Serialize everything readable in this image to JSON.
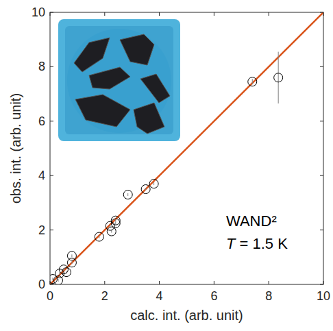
{
  "chart_data": {
    "type": "scatter",
    "xlabel": "calc. int. (arb. unit)",
    "ylabel": "obs. int. (arb. unit)",
    "annotations": [
      "WAND²",
      "T = 1.5 K"
    ],
    "xlim": [
      0,
      10
    ],
    "ylim": [
      0,
      10
    ],
    "xticks": [
      0,
      2,
      4,
      6,
      8,
      10
    ],
    "yticks": [
      0,
      2,
      4,
      6,
      8,
      10
    ],
    "grid": false,
    "series": [
      {
        "type": "scatter",
        "color": "#000000",
        "marker": "circle",
        "x": [
          0.1,
          0.3,
          0.35,
          0.5,
          0.6,
          0.8,
          0.8,
          1.8,
          2.2,
          2.25,
          2.4,
          2.4,
          2.85,
          3.5,
          3.8,
          7.4,
          8.35
        ],
        "values": [
          0.2,
          0.15,
          0.4,
          0.55,
          0.45,
          0.8,
          1.05,
          1.75,
          2.15,
          1.95,
          2.25,
          2.35,
          3.3,
          3.5,
          3.7,
          7.45,
          7.6
        ],
        "errors": [
          0.05,
          0.05,
          0.05,
          0.05,
          0.05,
          0.05,
          0.05,
          0.05,
          0.05,
          0.05,
          0.05,
          0.05,
          0.05,
          0.05,
          0.05,
          0.1,
          0.95
        ]
      },
      {
        "type": "line",
        "color": "#d95319",
        "line_style": "solid",
        "x": [
          0,
          10
        ],
        "values": [
          0,
          10
        ]
      }
    ]
  }
}
